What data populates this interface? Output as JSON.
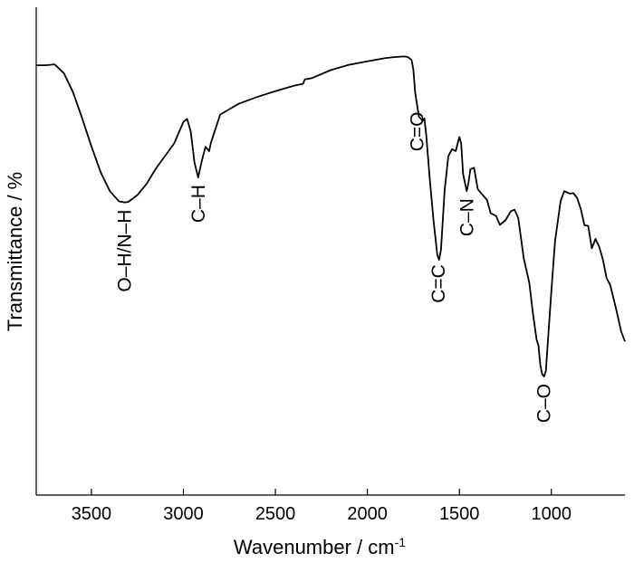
{
  "chart_data": {
    "type": "line",
    "title": "",
    "xlabel": "Wavenumber / cm",
    "xlabel_superscript": "-1",
    "ylabel": "Transmittance / %",
    "x_reversed": true,
    "xlim": [
      3800,
      600
    ],
    "ylim": [
      0,
      100
    ],
    "x_ticks": [
      3500,
      3000,
      2500,
      2000,
      1500,
      1000
    ],
    "y_tick_labels_shown": false,
    "grid": false,
    "line_color": "#000000",
    "series": [
      {
        "x": [
          3800,
          3750,
          3700,
          3650,
          3600,
          3550,
          3500,
          3450,
          3400,
          3350,
          3320,
          3300,
          3250,
          3200,
          3150,
          3100,
          3050,
          3000,
          2980,
          2960,
          2940,
          2920,
          2900,
          2880,
          2860,
          2850,
          2800,
          2700,
          2600,
          2500,
          2400,
          2350,
          2340,
          2300,
          2200,
          2100,
          2000,
          1900,
          1850,
          1800,
          1780,
          1760,
          1750,
          1740,
          1720,
          1700,
          1690,
          1680,
          1660,
          1640,
          1620,
          1610,
          1600,
          1580,
          1560,
          1540,
          1520,
          1500,
          1490,
          1480,
          1460,
          1450,
          1440,
          1420,
          1400,
          1380,
          1350,
          1330,
          1300,
          1280,
          1250,
          1220,
          1200,
          1180,
          1150,
          1120,
          1100,
          1080,
          1070,
          1060,
          1050,
          1040,
          1030,
          1020,
          1000,
          980,
          950,
          930,
          900,
          880,
          860,
          840,
          820,
          800,
          780,
          760,
          740,
          720,
          700,
          680,
          650,
          620,
          600
        ],
        "y": [
          88.1,
          88.1,
          88.3,
          86.5,
          82.6,
          77.2,
          71.5,
          66.2,
          62.3,
          60.2,
          60.0,
          60.1,
          61.5,
          63.8,
          66.9,
          69.5,
          72.1,
          76.5,
          77.1,
          74.5,
          68.2,
          65.1,
          68.5,
          71.4,
          70.5,
          72.3,
          78.0,
          80.2,
          81.6,
          82.8,
          83.9,
          84.3,
          85.2,
          85.5,
          87.1,
          88.2,
          88.9,
          89.6,
          89.8,
          89.9,
          89.8,
          89.2,
          87.2,
          82.5,
          77.6,
          76.7,
          77.2,
          73.8,
          64.4,
          56.0,
          49.3,
          48.2,
          50.3,
          62.4,
          69.5,
          70.9,
          70.5,
          73.4,
          72.1,
          65.8,
          62.3,
          64.1,
          66.8,
          67.1,
          62.7,
          61.8,
          60.5,
          57.8,
          57.2,
          55.4,
          56.3,
          58.2,
          58.5,
          56.8,
          48.5,
          43.5,
          37.3,
          31.8,
          30.7,
          26.6,
          24.8,
          24.3,
          25.4,
          30.9,
          41.9,
          52.0,
          60.2,
          62.3,
          61.8,
          61.9,
          60.9,
          58.6,
          55.3,
          55.2,
          50.6,
          52.5,
          50.9,
          48.3,
          44.5,
          43.0,
          38.5,
          33.5,
          31.5
        ]
      }
    ],
    "annotations": [
      {
        "text": "O–H/N–H",
        "x": 3320
      },
      {
        "text": "C–H",
        "x": 2920
      },
      {
        "text": "C=O",
        "x": 1730
      },
      {
        "text": "C=C",
        "x": 1615
      },
      {
        "text": "C–N",
        "x": 1460
      },
      {
        "text": "C–O",
        "x": 1040
      }
    ]
  }
}
